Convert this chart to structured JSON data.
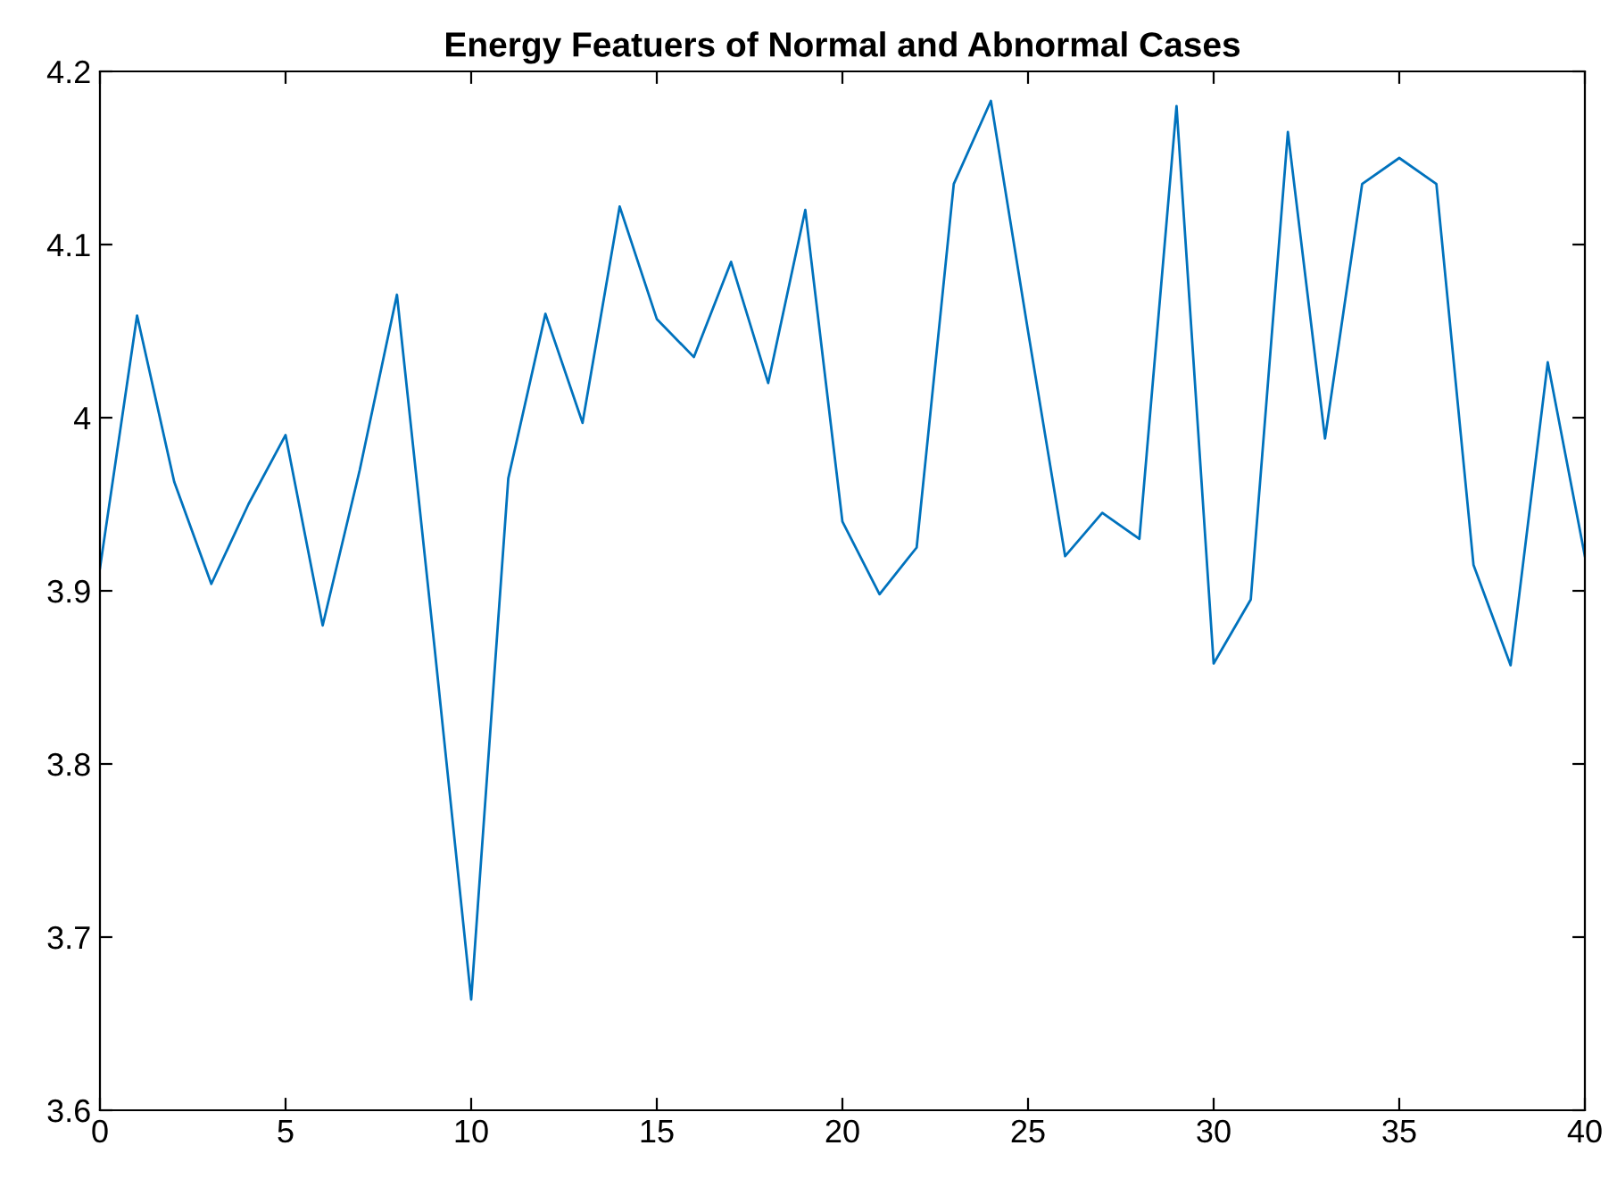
{
  "chart_data": {
    "type": "line",
    "title": "Energy Featuers of Normal and Abnormal Cases",
    "x": [
      0,
      1,
      2,
      3,
      4,
      5,
      6,
      7,
      8,
      9,
      10,
      11,
      12,
      13,
      14,
      15,
      16,
      17,
      18,
      19,
      20,
      21,
      22,
      23,
      24,
      25,
      26,
      27,
      28,
      29,
      30,
      31,
      32,
      33,
      34,
      35,
      36,
      37,
      38,
      39,
      40
    ],
    "series": [
      {
        "color": "#0072bd",
        "values": [
          3.913,
          4.059,
          3.963,
          3.904,
          3.95,
          3.99,
          3.88,
          3.97,
          4.071,
          3.87,
          3.664,
          3.965,
          4.06,
          3.997,
          4.122,
          4.057,
          4.035,
          4.09,
          4.02,
          4.12,
          3.94,
          3.898,
          3.925,
          4.135,
          4.183,
          4.05,
          3.92,
          3.945,
          3.93,
          4.18,
          3.858,
          3.895,
          4.165,
          3.988,
          4.135,
          4.15,
          4.135,
          3.915,
          3.857,
          4.032,
          3.92
        ]
      }
    ],
    "xlim": [
      0,
      40
    ],
    "xticks": [
      0,
      5,
      10,
      15,
      20,
      25,
      30,
      35,
      40
    ],
    "ylim": [
      3.6,
      4.2
    ],
    "yticks": [
      3.6,
      3.7,
      3.8,
      3.9,
      {
        "value": 4,
        "label": "4"
      },
      4.1,
      4.2
    ],
    "grid": false,
    "legend": false,
    "marker": "none",
    "line_style": "solid"
  }
}
